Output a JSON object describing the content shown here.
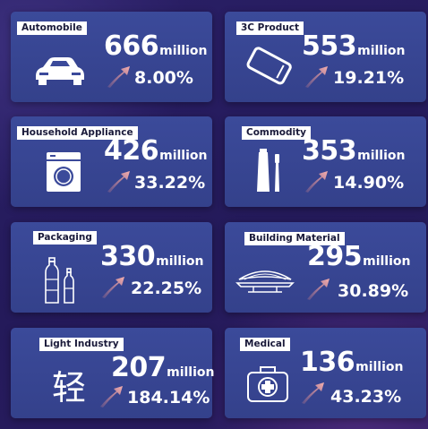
{
  "cards": [
    {
      "label": "Automobile",
      "value": "666",
      "unit": "million",
      "growth": "8.00%",
      "icon": "car-icon"
    },
    {
      "label": "3C Product",
      "value": "553",
      "unit": "million",
      "growth": "19.21%",
      "icon": "smartphone-icon"
    },
    {
      "label": "Household Appliance",
      "value": "426",
      "unit": "million",
      "growth": "33.22%",
      "icon": "washing-machine-icon"
    },
    {
      "label": "Commodity",
      "value": "353",
      "unit": "million",
      "growth": "14.90%",
      "icon": "toothbrush-toothpaste-icon"
    },
    {
      "label": "Packaging",
      "value": "330",
      "unit": "million",
      "growth": "22.25%",
      "icon": "bottles-icon"
    },
    {
      "label": "Building Material",
      "value": "295",
      "unit": "million",
      "growth": "30.89%",
      "icon": "stadium-roof-icon"
    },
    {
      "label": "Light Industry",
      "value": "207",
      "unit": "million",
      "growth": "184.14%",
      "icon": "qing-character-icon",
      "glyph": "轻"
    },
    {
      "label": "Medical",
      "value": "136",
      "unit": "million",
      "growth": "43.23%",
      "icon": "medical-kit-icon"
    }
  ],
  "colors": {
    "card": "#3b4a9a",
    "background": "#241a5a",
    "arrow": "#f0a0a0"
  }
}
